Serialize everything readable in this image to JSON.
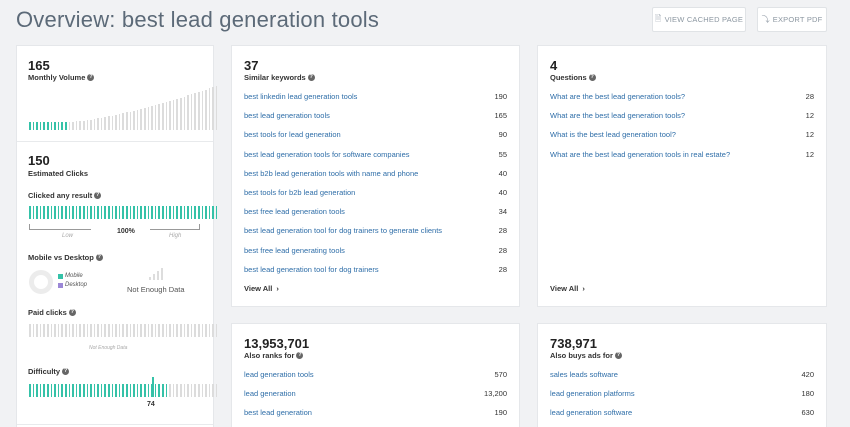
{
  "header": {
    "title": "Overview: best lead generation tools",
    "view_cached": "VIEW CACHED PAGE",
    "export_pdf": "EXPORT PDF"
  },
  "colors": {
    "accent": "#35c2a8",
    "bar_inactive": "#dcdcdc",
    "link": "#2f6ea8",
    "desktop": "#9b87d6"
  },
  "sidebar": {
    "monthly_volume": {
      "value": "165",
      "label": "Monthly Volume"
    },
    "estimated_clicks": {
      "value": "150",
      "label": "Estimated Clicks"
    },
    "clicked_any_result": {
      "label": "Clicked any result",
      "percent": "100%",
      "low": "Low",
      "high": "High",
      "level": 1.0
    },
    "mobile_desktop": {
      "label": "Mobile vs Desktop",
      "mobile": "Mobile",
      "desktop": "Desktop",
      "status": "Not Enough Data"
    },
    "paid_clicks": {
      "label": "Paid clicks",
      "status": "Not Enough Data"
    },
    "difficulty": {
      "label": "Difficulty",
      "value": "74",
      "level": 0.74
    }
  },
  "similar": {
    "count": "37",
    "label": "Similar keywords",
    "rows": [
      {
        "k": "best linkedin lead generation tools",
        "v": "190"
      },
      {
        "k": "best lead generation tools",
        "v": "165"
      },
      {
        "k": "best tools for lead generation",
        "v": "90"
      },
      {
        "k": "best lead generation tools for software companies",
        "v": "55"
      },
      {
        "k": "best b2b lead generation tools with name and phone",
        "v": "40"
      },
      {
        "k": "best tools for b2b lead generation",
        "v": "40"
      },
      {
        "k": "best free lead generation tools",
        "v": "34"
      },
      {
        "k": "best lead generation tool for dog trainers to generate clients",
        "v": "28"
      },
      {
        "k": "best free lead generating tools",
        "v": "28"
      },
      {
        "k": "best lead generation tool for dog trainers",
        "v": "28"
      }
    ],
    "view_all": "View All"
  },
  "questions": {
    "count": "4",
    "label": "Questions",
    "rows": [
      {
        "k": "What are the best lead generation tools?",
        "v": "28"
      },
      {
        "k": "What are the best lead generation tools?",
        "v": "12"
      },
      {
        "k": "What is the best lead generation tool?",
        "v": "12"
      },
      {
        "k": "What are the best lead generation tools in real estate?",
        "v": "12"
      }
    ],
    "view_all": "View All"
  },
  "also_ranks": {
    "count": "13,953,701",
    "label": "Also ranks for",
    "rows": [
      {
        "k": "lead generation tools",
        "v": "570"
      },
      {
        "k": "lead generation",
        "v": "13,200"
      },
      {
        "k": "best lead generation",
        "v": "190"
      }
    ]
  },
  "also_buys": {
    "count": "738,971",
    "label": "Also buys ads for",
    "rows": [
      {
        "k": "sales leads software",
        "v": "420"
      },
      {
        "k": "lead generation platforms",
        "v": "180"
      },
      {
        "k": "lead generation software",
        "v": "630"
      }
    ]
  }
}
